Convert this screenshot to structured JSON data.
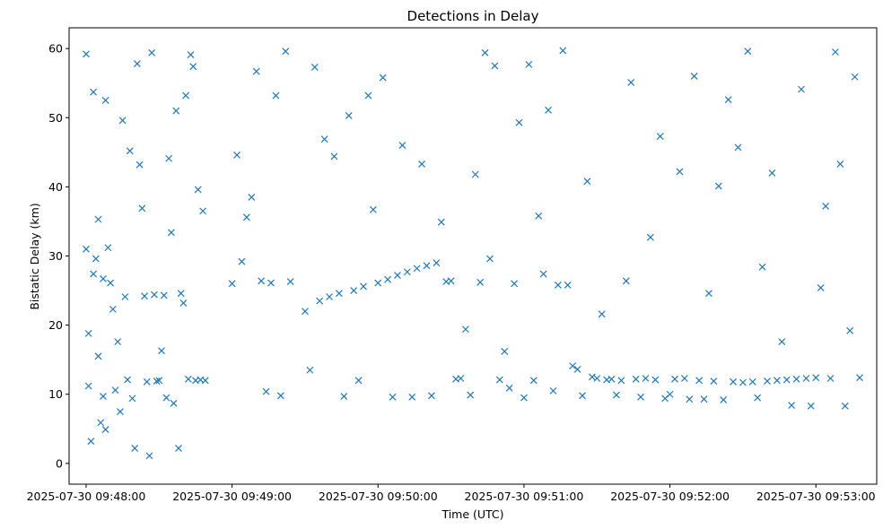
{
  "chart_data": {
    "type": "scatter",
    "title": "Detections in Delay",
    "xlabel": "Time (UTC)",
    "ylabel": "Bistatic Delay (km)",
    "marker": "x",
    "marker_color": "#1f77b4",
    "grid": false,
    "x_axis": {
      "type": "time",
      "range": [
        "2025-07-30 09:47:53",
        "2025-07-30 09:53:25"
      ],
      "ticks": [
        "2025-07-30 09:48:00",
        "2025-07-30 09:49:00",
        "2025-07-30 09:50:00",
        "2025-07-30 09:51:00",
        "2025-07-30 09:52:00",
        "2025-07-30 09:53:00"
      ]
    },
    "y_axis": {
      "range": [
        -3,
        63
      ],
      "ticks": [
        0,
        10,
        20,
        30,
        40,
        50,
        60
      ]
    },
    "series": [
      {
        "x_start": "2025-07-30 09:48:00",
        "sample_seconds": [
          0,
          0,
          1,
          1,
          2,
          3,
          3,
          4,
          5,
          5,
          6,
          7,
          7,
          8,
          8,
          9,
          10,
          11,
          12,
          13,
          14,
          15,
          16,
          17,
          18,
          19,
          20,
          21,
          22,
          23,
          24,
          25,
          26,
          27,
          28,
          29,
          30,
          31,
          32,
          33,
          34,
          35,
          36,
          37,
          38,
          39,
          40,
          41,
          42,
          43,
          44,
          45,
          46,
          47,
          48,
          49,
          60,
          62,
          64,
          66,
          68,
          70,
          72,
          74,
          76,
          78,
          80,
          82,
          84,
          90,
          92,
          94,
          96,
          98,
          100,
          102,
          104,
          106,
          108,
          110,
          112,
          114,
          116,
          118,
          120,
          122,
          124,
          126,
          128,
          130,
          132,
          134,
          136,
          138,
          140,
          142,
          144,
          146,
          148,
          150,
          152,
          154,
          156,
          158,
          160,
          162,
          164,
          166,
          168,
          170,
          172,
          174,
          176,
          178,
          180,
          182,
          184,
          186,
          188,
          190,
          192,
          194,
          196,
          198,
          200,
          202,
          204,
          206,
          208,
          210,
          212,
          214,
          216,
          218,
          220,
          222,
          224,
          226,
          228,
          230,
          232,
          234,
          236,
          238,
          240,
          242,
          244,
          246,
          248,
          250,
          252,
          254,
          256,
          258,
          260,
          262,
          264,
          266,
          268,
          270,
          272,
          274,
          276,
          278,
          280,
          282,
          284,
          286,
          288,
          290,
          292,
          294,
          296,
          298,
          300,
          302,
          304,
          306,
          308,
          310,
          312,
          314,
          316,
          318
        ],
        "sample_delays_km": [
          59.2,
          31.0,
          18.8,
          11.2,
          3.2,
          53.7,
          27.4,
          29.6,
          35.3,
          15.5,
          5.9,
          9.7,
          26.7,
          52.5,
          4.9,
          31.2,
          26.1,
          22.3,
          10.6,
          17.6,
          7.5,
          49.6,
          24.1,
          12.1,
          45.2,
          9.4,
          2.2,
          57.8,
          43.2,
          36.9,
          24.2,
          11.8,
          1.1,
          59.4,
          24.4,
          11.9,
          12.0,
          16.3,
          24.3,
          9.5,
          44.1,
          33.4,
          8.7,
          51.0,
          2.2,
          24.6,
          23.2,
          53.2,
          12.2,
          59.1,
          57.4,
          12.0,
          39.6,
          12.1,
          36.5,
          12.0,
          26.0,
          44.6,
          29.2,
          35.6,
          38.5,
          56.7,
          26.4,
          10.4,
          26.1,
          53.2,
          9.8,
          59.6,
          26.3,
          22.0,
          13.5,
          57.3,
          23.5,
          46.9,
          24.1,
          44.4,
          24.6,
          9.7,
          50.3,
          25.0,
          12.0,
          25.6,
          53.2,
          36.7,
          26.1,
          55.8,
          26.6,
          9.6,
          27.2,
          46.0,
          27.7,
          9.6,
          28.2,
          43.3,
          28.6,
          9.8,
          29.0,
          34.9,
          26.3,
          26.4,
          12.2,
          12.3,
          19.4,
          9.9,
          41.8,
          26.2,
          59.4,
          29.6,
          57.5,
          12.1,
          16.2,
          10.9,
          26.0,
          49.3,
          9.5,
          57.7,
          12.0,
          35.8,
          27.4,
          51.1,
          10.5,
          25.8,
          59.7,
          25.8,
          14.1,
          13.6,
          9.8,
          40.8,
          12.5,
          12.3,
          21.6,
          12.1,
          12.2,
          9.9,
          12.0,
          26.4,
          55.1,
          12.2,
          9.6,
          12.3,
          32.7,
          12.1,
          47.3,
          9.4,
          10.0,
          12.2,
          42.2,
          12.3,
          9.3,
          56.0,
          12.0,
          9.3,
          24.6,
          11.9,
          40.1,
          9.2,
          52.6,
          11.8,
          45.7,
          11.7,
          59.6,
          11.8,
          9.5,
          28.4,
          11.9,
          42.0,
          12.0,
          17.6,
          12.1,
          8.4,
          12.2,
          54.1,
          12.3,
          8.3,
          12.4,
          25.4,
          37.2,
          12.3,
          59.5,
          43.3,
          8.3,
          19.2,
          55.9,
          12.4
        ]
      }
    ]
  }
}
